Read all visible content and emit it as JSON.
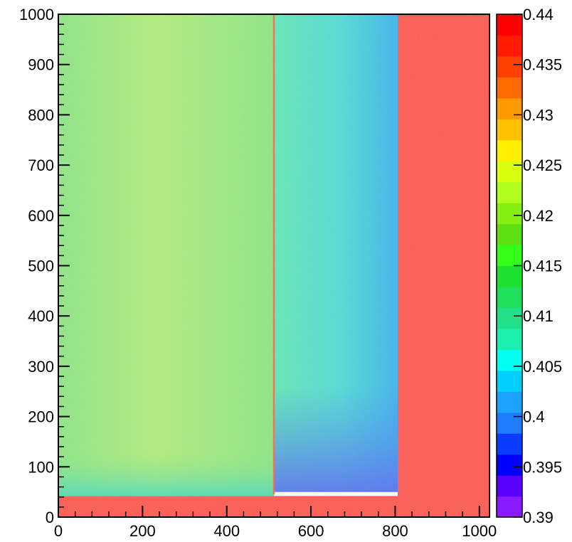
{
  "chart_data": {
    "type": "heatmap",
    "title": "",
    "xlabel": "",
    "ylabel": "",
    "xlim": [
      0,
      1024
    ],
    "ylim": [
      0,
      1000
    ],
    "x_ticks": [
      0,
      200,
      400,
      600,
      800,
      1000
    ],
    "x_tick_labels": [
      "0",
      "200",
      "400",
      "600",
      "800",
      "1000"
    ],
    "y_ticks": [
      0,
      100,
      200,
      300,
      400,
      500,
      600,
      700,
      800,
      900,
      1000
    ],
    "y_tick_labels": [
      "0",
      "100",
      "200",
      "300",
      "400",
      "500",
      "600",
      "700",
      "800",
      "900",
      "1000"
    ],
    "z_range": [
      0.39,
      0.44
    ],
    "colorbar": {
      "ticks": [
        0.39,
        0.395,
        0.4,
        0.405,
        0.41,
        0.415,
        0.42,
        0.425,
        0.43,
        0.435,
        0.44
      ],
      "tick_labels": [
        "0.39",
        "0.395",
        "0.4",
        "0.405",
        "0.41",
        "0.415",
        "0.42",
        "0.425",
        "0.43",
        "0.435",
        "0.44"
      ],
      "colors": [
        "#8a1aff",
        "#5a00ff",
        "#0000ff",
        "#0a3cff",
        "#1e7cff",
        "#1ea2ff",
        "#00cfff",
        "#00ffee",
        "#1aefb0",
        "#22e08a",
        "#1fe05a",
        "#1ee030",
        "#35ff1a",
        "#5ee010",
        "#86ef12",
        "#b0ff1e",
        "#d8ff10",
        "#fff000",
        "#ffc000",
        "#ff9a00",
        "#ff6a00",
        "#ff4000",
        "#ff1a00",
        "#ff0000"
      ]
    },
    "regions": [
      {
        "name": "bottom-strip",
        "x": [
          0,
          1024
        ],
        "y": [
          0,
          42
        ],
        "z": 0.44,
        "color": "#ff5a50"
      },
      {
        "name": "right-block",
        "x": [
          806,
          1024
        ],
        "y": [
          0,
          1000
        ],
        "z": 0.44,
        "color": "#ff5a50"
      },
      {
        "name": "left-area",
        "x": [
          0,
          512
        ],
        "y": [
          42,
          1000
        ],
        "z": 0.424,
        "color": "#9ef070"
      },
      {
        "name": "middle-area",
        "x": [
          512,
          806
        ],
        "y": [
          50,
          1000
        ],
        "z": 0.408,
        "color": "#4fe8b2"
      },
      {
        "name": "vertical-line",
        "x": [
          510,
          514
        ],
        "y": [
          45,
          1000
        ],
        "z": 0.44,
        "color": "#ff6a40"
      }
    ]
  }
}
